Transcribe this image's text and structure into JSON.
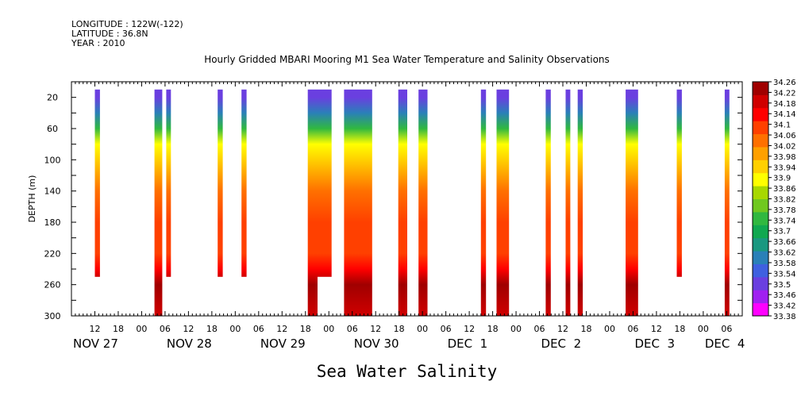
{
  "meta": {
    "longitude": "LONGITUDE : 122W(-122)",
    "latitude": "LATITUDE : 36.8N",
    "year": "YEAR : 2010"
  },
  "caption": "Sea Water Salinity",
  "colors": {
    "scale": [
      "#ff00ff",
      "#a020f0",
      "#6a3fe0",
      "#3f60e0",
      "#2a80b8",
      "#1a9880",
      "#10a850",
      "#30b840",
      "#70c820",
      "#a8d800",
      "#ffff00",
      "#ffd000",
      "#ffa000",
      "#ff7000",
      "#ff4000",
      "#ff0000",
      "#d00000",
      "#a00000"
    ]
  },
  "chart_data": {
    "type": "heatmap",
    "title": "Hourly Gridded MBARI Mooring M1 Sea Water Temperature and Salinity Observations",
    "ylabel": "DEPTH (m)",
    "xlabel": "",
    "x_range_hours": [
      0,
      172
    ],
    "ylim": [
      300,
      0
    ],
    "y_ticks": [
      20,
      60,
      100,
      140,
      180,
      220,
      260,
      300
    ],
    "x_hour_ticks": [
      "12",
      "18",
      "00",
      "06",
      "12",
      "18",
      "00",
      "06",
      "12",
      "18",
      "00",
      "06",
      "12",
      "18",
      "00",
      "06",
      "12",
      "18",
      "00",
      "06",
      "12",
      "18",
      "00",
      "06",
      "12",
      "18",
      "00",
      "06"
    ],
    "x_day_labels": [
      {
        "label": "NOV 27",
        "hour": 0
      },
      {
        "label": "NOV 28",
        "hour": 24
      },
      {
        "label": "NOV 29",
        "hour": 48
      },
      {
        "label": "NOV 30",
        "hour": 72
      },
      {
        "label": "DEC  1",
        "hour": 96
      },
      {
        "label": "DEC  2",
        "hour": 120
      },
      {
        "label": "DEC  3",
        "hour": 144
      },
      {
        "label": "DEC  4",
        "hour": 162
      }
    ],
    "colorbar_labels": [
      "34.26",
      "34.22",
      "34.18",
      "34.14",
      "34.1",
      "34.06",
      "34.02",
      "33.98",
      "33.94",
      "33.9",
      "33.86",
      "33.82",
      "33.78",
      "33.74",
      "33.7",
      "33.66",
      "33.62",
      "33.58",
      "33.54",
      "33.5",
      "33.46",
      "33.42",
      "33.38"
    ],
    "depth_profile": [
      {
        "depth": 20,
        "value": 33.52
      },
      {
        "depth": 40,
        "value": 33.62
      },
      {
        "depth": 60,
        "value": 33.76
      },
      {
        "depth": 80,
        "value": 33.88
      },
      {
        "depth": 100,
        "value": 33.96
      },
      {
        "depth": 120,
        "value": 34.0
      },
      {
        "depth": 140,
        "value": 34.04
      },
      {
        "depth": 180,
        "value": 34.07
      },
      {
        "depth": 220,
        "value": 34.1
      },
      {
        "depth": 240,
        "value": 34.16
      },
      {
        "depth": 260,
        "value": 34.22
      },
      {
        "depth": 300,
        "value": 34.18
      }
    ],
    "columns": [
      {
        "start": 6.0,
        "end": 7.3,
        "depth_min": 20,
        "depth_max": 250
      },
      {
        "start": 21.3,
        "end": 23.3,
        "depth_min": 20,
        "depth_max": 300
      },
      {
        "start": 24.3,
        "end": 25.5,
        "depth_min": 20,
        "depth_max": 250
      },
      {
        "start": 37.5,
        "end": 38.8,
        "depth_min": 20,
        "depth_max": 250
      },
      {
        "start": 43.6,
        "end": 44.9,
        "depth_min": 20,
        "depth_max": 250
      },
      {
        "start": 60.6,
        "end": 63.1,
        "depth_min": 20,
        "depth_max": 300
      },
      {
        "start": 63.1,
        "end": 66.7,
        "depth_min": 20,
        "depth_max": 250
      },
      {
        "start": 69.9,
        "end": 77.1,
        "depth_min": 20,
        "depth_max": 300
      },
      {
        "start": 83.8,
        "end": 86.1,
        "depth_min": 20,
        "depth_max": 300
      },
      {
        "start": 89.0,
        "end": 91.3,
        "depth_min": 20,
        "depth_max": 300
      },
      {
        "start": 105.0,
        "end": 106.3,
        "depth_min": 20,
        "depth_max": 300
      },
      {
        "start": 109.0,
        "end": 112.2,
        "depth_min": 20,
        "depth_max": 300
      },
      {
        "start": 121.6,
        "end": 122.9,
        "depth_min": 20,
        "depth_max": 300
      },
      {
        "start": 126.7,
        "end": 127.9,
        "depth_min": 20,
        "depth_max": 300
      },
      {
        "start": 129.8,
        "end": 131.1,
        "depth_min": 20,
        "depth_max": 300
      },
      {
        "start": 142.1,
        "end": 145.3,
        "depth_min": 20,
        "depth_max": 300
      },
      {
        "start": 155.2,
        "end": 156.5,
        "depth_min": 20,
        "depth_max": 250
      },
      {
        "start": 167.5,
        "end": 168.7,
        "depth_min": 20,
        "depth_max": 300
      }
    ]
  }
}
